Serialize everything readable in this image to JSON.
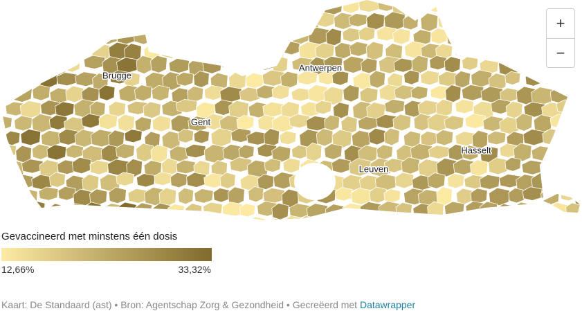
{
  "map": {
    "cities": [
      "Brugge",
      "Gent",
      "Antwerpen",
      "Leuven",
      "Hasselt"
    ]
  },
  "legend": {
    "title": "Gevaccineerd met minstens één dosis",
    "min": {
      "value": 12.66,
      "label": "12,66%"
    },
    "max": {
      "value": 33.32,
      "label": "33,32%"
    },
    "colors": [
      "#fdeba4",
      "#806a2c"
    ]
  },
  "footer": {
    "text": "Kaart: De Standaard (ast) • Bron: Agentschap Zorg & Gezondheid • Gecreëerd met ",
    "link": "Datawrapper"
  },
  "controls": {
    "zoom_in": "+",
    "zoom_out": "−"
  }
}
